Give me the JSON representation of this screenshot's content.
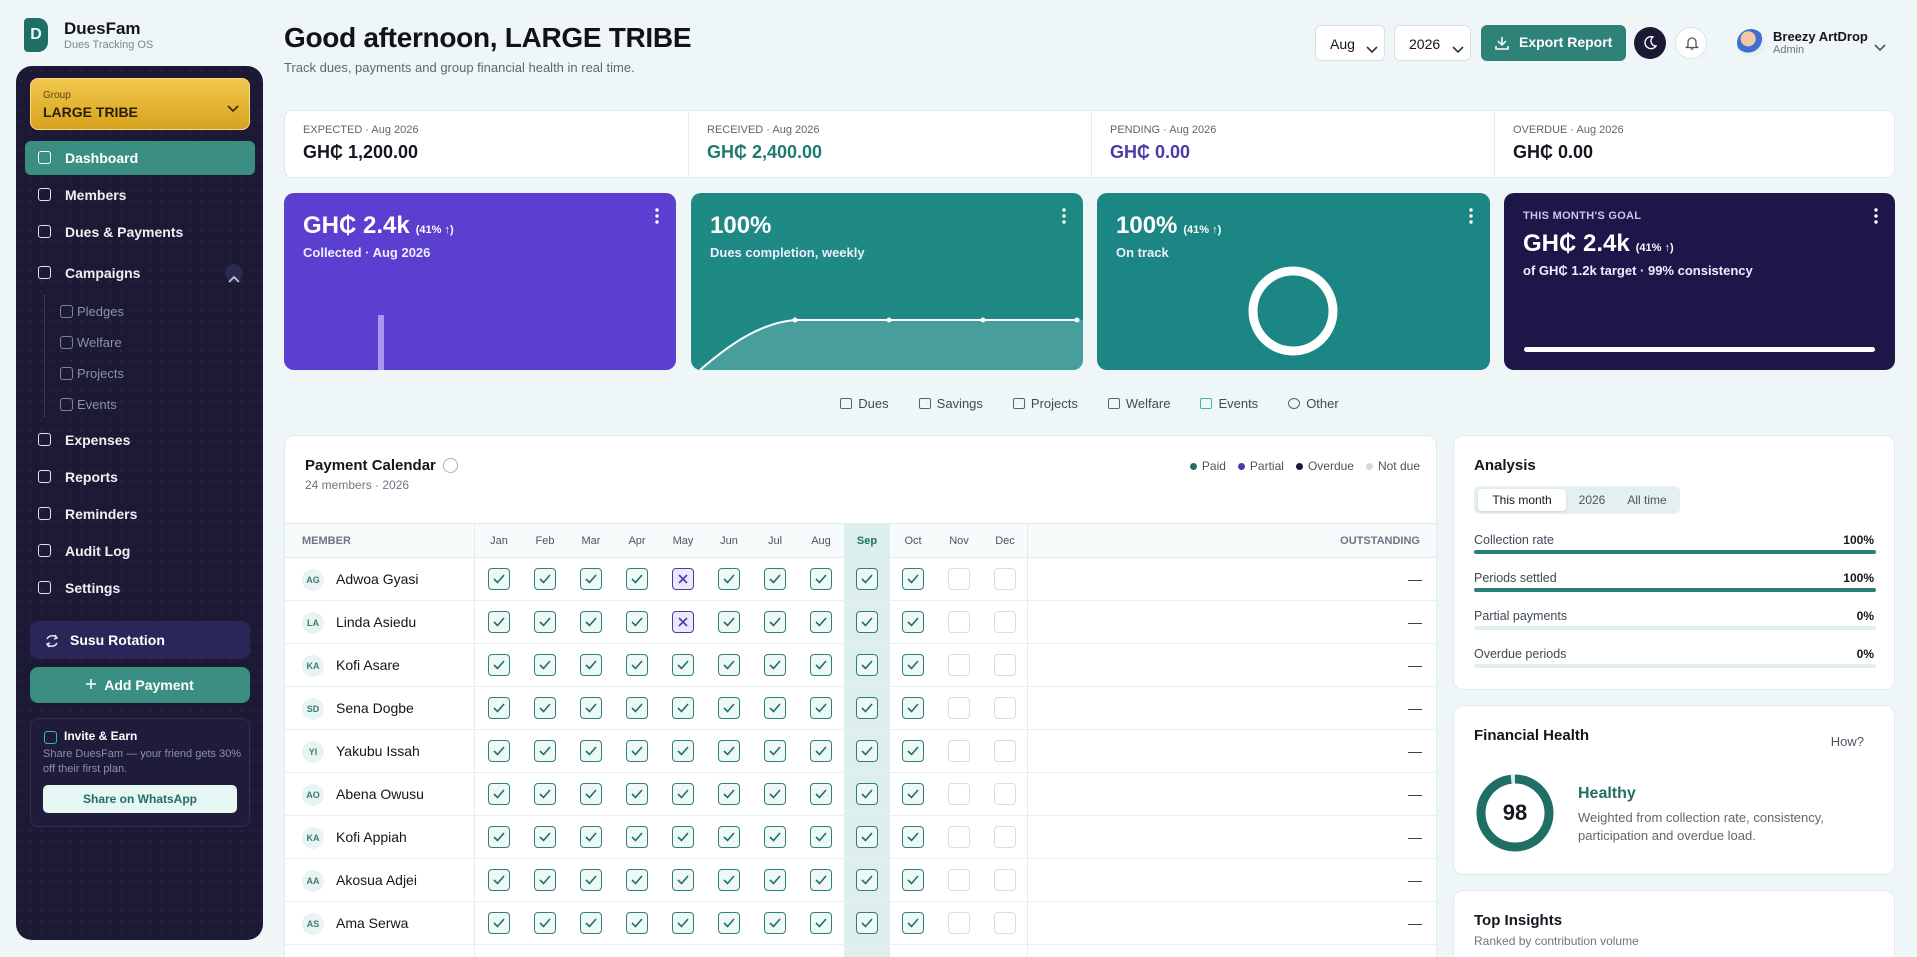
{
  "brand": {
    "logo": "D",
    "name": "DuesFam",
    "tagline": "Dues Tracking OS"
  },
  "sidebar": {
    "group_label": "Group",
    "group_name": "LARGE TRIBE",
    "nav": [
      "Dashboard",
      "Members",
      "Dues & Payments"
    ],
    "campaigns": {
      "label": "Campaigns",
      "items": [
        "Pledges",
        "Welfare",
        "Projects",
        "Events"
      ]
    },
    "nav_more": [
      "Expenses",
      "Reports",
      "Reminders",
      "Audit Log",
      "Settings"
    ],
    "susu": "Susu Rotation",
    "add_payment": "Add Payment",
    "invite": {
      "title": "Invite & Earn",
      "text": "Share DuesFam — your friend gets 30% off their first plan.",
      "button": "Share on WhatsApp"
    }
  },
  "header": {
    "title": "Good afternoon, LARGE TRIBE",
    "subtitle": "Track dues, payments and group financial health in real time.",
    "month": "Aug",
    "year": "2026",
    "export": "Export Report",
    "user_name": "Breezy ArtDrop",
    "user_role": "Admin"
  },
  "stats": [
    {
      "label": "EXPECTED",
      "period": "· Aug 2026",
      "value": "GH₵ 1,200.00",
      "color": "#15151f"
    },
    {
      "label": "RECEIVED",
      "period": "· Aug 2026",
      "value": "GH₵ 2,400.00",
      "color": "#1f7a70"
    },
    {
      "label": "PENDING",
      "period": "· Aug 2026",
      "value": "GH₵ 0.00",
      "color": "#4b3aa8"
    },
    {
      "label": "OVERDUE",
      "period": "· Aug 2026",
      "value": "GH₵ 0.00",
      "color": "#15151f"
    }
  ],
  "cards": [
    {
      "value": "GH₵ 2.4k",
      "change": "(41% ↑)",
      "caption": "Collected · Aug 2026",
      "color": "#5a3fd1"
    },
    {
      "value": "100%",
      "caption": "Dues completion, weekly",
      "color": "#1f8984"
    },
    {
      "value": "100%",
      "change": "(41% ↑)",
      "caption": "On track",
      "color": "#1b8683"
    },
    {
      "eyebrow": "THIS MONTH'S GOAL",
      "value": "GH₵ 2.4k",
      "change": "(41% ↑)",
      "caption": "of GH₵ 1.2k target · 99% consistency",
      "color": "#1c1748"
    }
  ],
  "tabs": [
    "Dues",
    "Savings",
    "Projects",
    "Welfare",
    "Events",
    "Other"
  ],
  "calendar": {
    "title": "Payment Calendar",
    "subtitle": "24 members · 2026",
    "legend": [
      {
        "name": "Paid",
        "color": "#1f6f66"
      },
      {
        "name": "Partial",
        "color": "#4b3aa8"
      },
      {
        "name": "Overdue",
        "color": "#1b1933"
      },
      {
        "name": "Not due",
        "color": "#cfdcdf"
      }
    ],
    "member_header": "MEMBER",
    "outstanding_header": "OUTSTANDING",
    "months": [
      "Jan",
      "Feb",
      "Mar",
      "Apr",
      "May",
      "Jun",
      "Jul",
      "Aug",
      "Sep",
      "Oct",
      "Nov",
      "Dec"
    ],
    "current_month": "Sep",
    "rows": [
      {
        "initials": "AG",
        "name": "Adwoa Gyasi",
        "status": [
          "paid",
          "paid",
          "paid",
          "paid",
          "partial",
          "paid",
          "paid",
          "paid",
          "paid",
          "paid",
          "not_due",
          "not_due"
        ],
        "outstanding": "—"
      },
      {
        "initials": "LA",
        "name": "Linda Asiedu",
        "status": [
          "paid",
          "paid",
          "paid",
          "paid",
          "partial",
          "paid",
          "paid",
          "paid",
          "paid",
          "paid",
          "not_due",
          "not_due"
        ],
        "outstanding": "—"
      },
      {
        "initials": "KA",
        "name": "Kofi Asare",
        "status": [
          "paid",
          "paid",
          "paid",
          "paid",
          "paid",
          "paid",
          "paid",
          "paid",
          "paid",
          "paid",
          "not_due",
          "not_due"
        ],
        "outstanding": "—"
      },
      {
        "initials": "SD",
        "name": "Sena Dogbe",
        "status": [
          "paid",
          "paid",
          "paid",
          "paid",
          "paid",
          "paid",
          "paid",
          "paid",
          "paid",
          "paid",
          "not_due",
          "not_due"
        ],
        "outstanding": "—"
      },
      {
        "initials": "YI",
        "name": "Yakubu Issah",
        "status": [
          "paid",
          "paid",
          "paid",
          "paid",
          "paid",
          "paid",
          "paid",
          "paid",
          "paid",
          "paid",
          "not_due",
          "not_due"
        ],
        "outstanding": "—"
      },
      {
        "initials": "AO",
        "name": "Abena Owusu",
        "status": [
          "paid",
          "paid",
          "paid",
          "paid",
          "paid",
          "paid",
          "paid",
          "paid",
          "paid",
          "paid",
          "not_due",
          "not_due"
        ],
        "outstanding": "—"
      },
      {
        "initials": "KA",
        "name": "Kofi Appiah",
        "status": [
          "paid",
          "paid",
          "paid",
          "paid",
          "paid",
          "paid",
          "paid",
          "paid",
          "paid",
          "paid",
          "not_due",
          "not_due"
        ],
        "outstanding": "—"
      },
      {
        "initials": "AA",
        "name": "Akosua Adjei",
        "status": [
          "paid",
          "paid",
          "paid",
          "paid",
          "paid",
          "paid",
          "paid",
          "paid",
          "paid",
          "paid",
          "not_due",
          "not_due"
        ],
        "outstanding": "—"
      },
      {
        "initials": "AS",
        "name": "Ama Serwa",
        "status": [
          "paid",
          "paid",
          "paid",
          "paid",
          "paid",
          "paid",
          "paid",
          "paid",
          "paid",
          "paid",
          "not_due",
          "not_due"
        ],
        "outstanding": "—"
      }
    ]
  },
  "analysis": {
    "title": "Analysis",
    "ranges": [
      "This month",
      "2026",
      "All time"
    ],
    "active_range": "This month",
    "xlim": [
      0,
      100
    ],
    "metrics": [
      {
        "label": "Collection rate",
        "value": 100,
        "value_label": "100%"
      },
      {
        "label": "Periods settled",
        "value": 100,
        "value_label": "100%"
      },
      {
        "label": "Partial payments",
        "value": 0,
        "value_label": "0%"
      },
      {
        "label": "Overdue periods",
        "value": 0,
        "value_label": "0%"
      }
    ]
  },
  "health": {
    "title": "Financial Health",
    "help": "How?",
    "score": 98,
    "score_range": [
      0,
      100
    ],
    "status": "Healthy",
    "text": "Weighted from collection rate, consistency, participation and overdue load."
  },
  "insights": {
    "title": "Top Insights",
    "subtitle": "Ranked by contribution volume"
  }
}
